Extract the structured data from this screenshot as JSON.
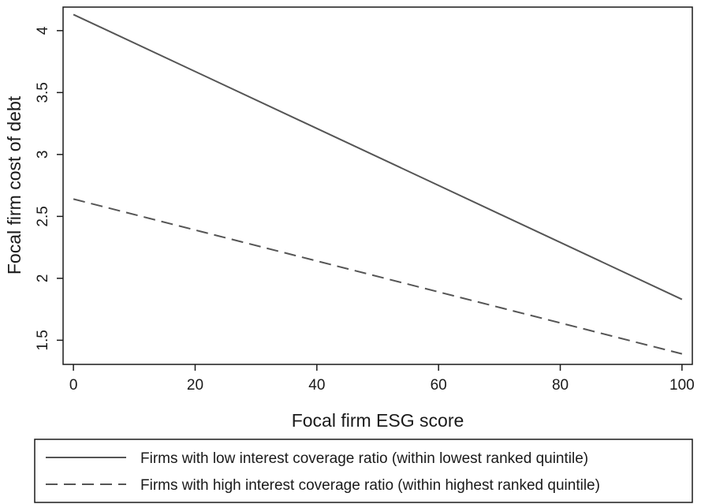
{
  "chart_data": {
    "type": "line",
    "xlabel": "Focal firm ESG score",
    "ylabel": "Focal firm cost of debt",
    "xlim": [
      -1.7,
      101.7
    ],
    "ylim": [
      1.305,
      4.19
    ],
    "x_ticks": [
      0,
      20,
      40,
      60,
      80,
      100
    ],
    "x_tick_labels": [
      "0",
      "20",
      "40",
      "60",
      "80",
      "100"
    ],
    "y_ticks": [
      1.5,
      2,
      2.5,
      3,
      3.5,
      4
    ],
    "y_tick_labels": [
      "1.5",
      "2",
      "2.5",
      "3",
      "3.5",
      "4"
    ],
    "grid": false,
    "legend_position": "bottom",
    "series": [
      {
        "name": "Firms with low interest coverage ratio (within lowest ranked quintile)",
        "style": "solid",
        "color": "#555555",
        "x": [
          0,
          100
        ],
        "values": [
          4.13,
          1.83
        ]
      },
      {
        "name": "Firms with high interest coverage ratio (within highest ranked quintile)",
        "style": "dashed",
        "color": "#555555",
        "x": [
          0,
          100
        ],
        "values": [
          2.64,
          1.39
        ]
      }
    ]
  }
}
